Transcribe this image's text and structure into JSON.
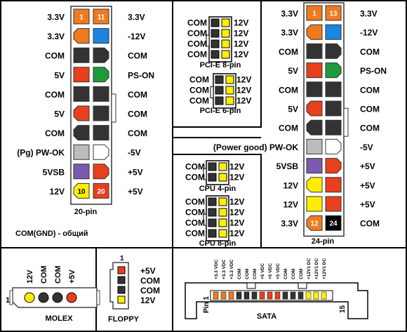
{
  "colors": {
    "orange": "#f07a20",
    "blue": "#1a86e0",
    "black": "#333333",
    "red": "#e8401c",
    "green": "#1e9a3a",
    "gray": "#bcbcbc",
    "white": "#ffffff",
    "purple": "#7a5aae",
    "yellow": "#ffee00",
    "pure_black": "#000000"
  },
  "atx20": {
    "caption": "20-pin",
    "note": "COM(GND) - общий",
    "rows": [
      {
        "left": "3.3V",
        "right": "3.3V",
        "c1": "orange",
        "c2": "orange",
        "n1": "1",
        "n2": "11",
        "s1": "sq",
        "s2": "sq"
      },
      {
        "left": "3.3V",
        "right": "-12V",
        "c1": "orange",
        "c2": "blue",
        "s1": "cl",
        "s2": "sq"
      },
      {
        "left": "COM",
        "right": "COM",
        "c1": "black",
        "c2": "black",
        "s1": "sq",
        "s2": "cl"
      },
      {
        "left": "5V",
        "right": "PS-ON",
        "c1": "red",
        "c2": "green",
        "s1": "sq",
        "s2": "cl"
      },
      {
        "left": "COM",
        "right": "COM",
        "c1": "black",
        "c2": "black",
        "s1": "sq",
        "s2": "sq"
      },
      {
        "left": "5V",
        "right": "COM",
        "c1": "red",
        "c2": "black",
        "s1": "cl",
        "s2": "sq"
      },
      {
        "left": "COM",
        "right": "COM",
        "c1": "black",
        "c2": "black",
        "s1": "cl",
        "s2": "sq"
      },
      {
        "left": "(Pg) PW-OK",
        "right": "-5V",
        "c1": "gray",
        "c2": "white",
        "s1": "sq",
        "s2": "cl"
      },
      {
        "left": "5VSB",
        "right": "+5V",
        "c1": "purple",
        "c2": "red",
        "s1": "sq",
        "s2": "cl"
      },
      {
        "left": "12V",
        "right": "+5V",
        "c1": "yellow",
        "c2": "red",
        "n1": "10",
        "n2": "20",
        "s1": "cl",
        "s2": "sq"
      }
    ]
  },
  "pcie8": {
    "caption": "PCI-E 8-pin",
    "rows": [
      {
        "left": "COM",
        "right": "12V",
        "c1": "black",
        "c2": "yellow"
      },
      {
        "left": "COM",
        "right": "12V",
        "c1": "black",
        "c2": "yellow"
      },
      {
        "left": "COM",
        "right": "12V",
        "c1": "black",
        "c2": "yellow"
      },
      {
        "left": "COM",
        "right": "12V",
        "c1": "black",
        "c2": "yellow"
      }
    ]
  },
  "pcie6": {
    "caption": "PCI-E 6-pin",
    "rows": [
      {
        "left": "COM",
        "right": "12V",
        "c1": "black",
        "c2": "yellow"
      },
      {
        "left": "COM",
        "right": "12V",
        "c1": "black",
        "c2": "yellow"
      },
      {
        "left": "COM",
        "right": "12V",
        "c1": "black",
        "c2": "yellow"
      }
    ]
  },
  "cpu4": {
    "caption": "CPU 4-pin",
    "rows": [
      {
        "left": "COM",
        "right": "12V",
        "c1": "black",
        "c2": "yellow"
      },
      {
        "left": "COM",
        "right": "12V",
        "c1": "black",
        "c2": "yellow"
      }
    ]
  },
  "cpu8": {
    "caption": "CPU 8-pin",
    "rows": [
      {
        "left": "COM",
        "right": "12V",
        "c1": "black",
        "c2": "yellow"
      },
      {
        "left": "COM",
        "right": "12V",
        "c1": "black",
        "c2": "yellow"
      },
      {
        "left": "COM",
        "right": "12V",
        "c1": "black",
        "c2": "yellow"
      },
      {
        "left": "COM",
        "right": "12V",
        "c1": "black",
        "c2": "yellow"
      }
    ]
  },
  "atx24": {
    "caption": "24-pin",
    "rows": [
      {
        "left": "3.3V",
        "right": "3.3V",
        "c1": "orange",
        "c2": "orange",
        "n1": "1",
        "n2": "13",
        "s1": "sq",
        "s2": "sq"
      },
      {
        "left": "3.3V",
        "right": "-12V",
        "c1": "orange",
        "c2": "blue",
        "s1": "cl",
        "s2": "sq"
      },
      {
        "left": "COM",
        "right": "COM",
        "c1": "black",
        "c2": "black",
        "s1": "sq",
        "s2": "cl"
      },
      {
        "left": "5V",
        "right": "PS-ON",
        "c1": "red",
        "c2": "green",
        "s1": "sq",
        "s2": "cl"
      },
      {
        "left": "COM",
        "right": "COM",
        "c1": "black",
        "c2": "black",
        "s1": "sq",
        "s2": "sq"
      },
      {
        "left": "5V",
        "right": "COM",
        "c1": "red",
        "c2": "black",
        "s1": "cl",
        "s2": "sq"
      },
      {
        "left": "COM",
        "right": "COM",
        "c1": "black",
        "c2": "black",
        "s1": "cl",
        "s2": "sq"
      },
      {
        "left": "(Power good) PW-OK",
        "right": "-5V",
        "c1": "gray",
        "c2": "white",
        "s1": "sq",
        "s2": "cl"
      },
      {
        "left": "5VSB",
        "right": "+5V",
        "c1": "purple",
        "c2": "red",
        "s1": "sq",
        "s2": "cl"
      },
      {
        "left": "12V",
        "right": "+5V",
        "c1": "yellow",
        "c2": "red",
        "s1": "cl",
        "s2": "sq"
      },
      {
        "left": "12V",
        "right": "+5V",
        "c1": "yellow",
        "c2": "red",
        "s1": "sq",
        "s2": "sq"
      },
      {
        "left": "3.3V",
        "right": "COM",
        "c1": "orange",
        "c2": "pure_black",
        "n1": "12",
        "n2": "24",
        "s1": "cl",
        "s2": "sq"
      }
    ]
  },
  "molex": {
    "caption": "MOLEX",
    "pin_number": "1",
    "pins": [
      {
        "label": "12V",
        "color": "yellow"
      },
      {
        "label": "COM",
        "color": "black"
      },
      {
        "label": "COM",
        "color": "black"
      },
      {
        "label": "+5V",
        "color": "red"
      }
    ]
  },
  "floppy": {
    "caption": "FLOPPY",
    "pin_number": "1",
    "pins": [
      {
        "label": "+5V",
        "color": "red"
      },
      {
        "label": "COM",
        "color": "black"
      },
      {
        "label": "COM",
        "color": "black"
      },
      {
        "label": "12V",
        "color": "yellow"
      }
    ]
  },
  "sata": {
    "caption": "SATA",
    "pin_start": "Pin 1",
    "pin_end": "15",
    "labels": [
      "+3.3 VDC",
      "+3.3 VDC",
      "+3.3 VDC",
      "COM",
      "COM",
      "COM",
      "+5 VDC",
      "+5 VDC",
      "+5 VDC",
      "COM",
      "COM",
      "COM",
      "+12V1 DC",
      "+12V1 DC",
      "+12V1 DC"
    ],
    "pin_colors": [
      "orange",
      "orange",
      "orange",
      "black",
      "black",
      "black",
      "red",
      "red",
      "red",
      "black",
      "black",
      "black",
      "yellow",
      "yellow",
      "yellow"
    ]
  }
}
